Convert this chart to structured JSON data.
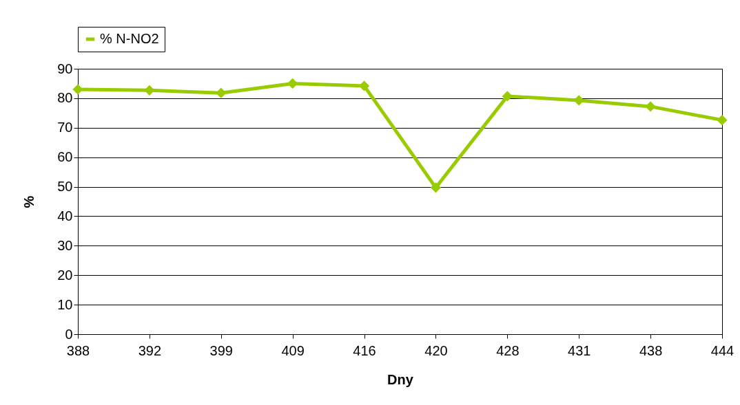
{
  "chart_data": {
    "type": "line",
    "xlabel": "Dny",
    "ylabel": "%",
    "categories": [
      "388",
      "392",
      "399",
      "409",
      "416",
      "420",
      "428",
      "431",
      "438",
      "444"
    ],
    "series": [
      {
        "name": "% N-NO2",
        "color": "#99cc00",
        "values": [
          83,
          82.7,
          81.8,
          85,
          84.2,
          49.7,
          80.7,
          79.3,
          77.2,
          72.6
        ]
      }
    ],
    "ylim": [
      0,
      90
    ],
    "yticks": [
      0,
      10,
      20,
      30,
      40,
      50,
      60,
      70,
      80,
      90
    ],
    "grid": "y",
    "legend": "top",
    "marker": "diamond",
    "line_style": "solid"
  }
}
